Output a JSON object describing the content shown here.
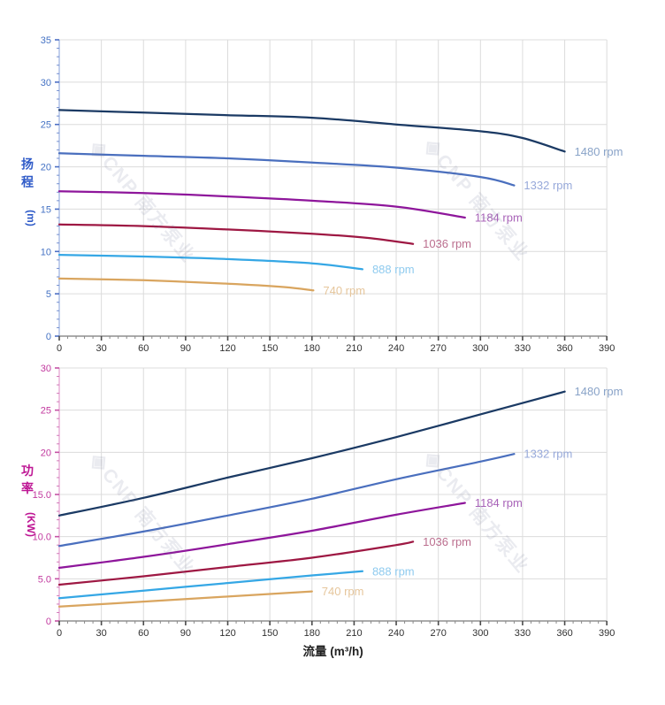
{
  "watermark": {
    "logo": "◈",
    "text": "CNP 南方泵业"
  },
  "x_axis": {
    "title": "流量 (m³/h)",
    "tick_labels": [
      "0",
      "30",
      "60",
      "90",
      "120",
      "150",
      "180",
      "210",
      "240",
      "270",
      "300",
      "330",
      "360",
      "390"
    ],
    "tick_step": 30,
    "minor_step": 6,
    "max": 390
  },
  "chart_data": [
    {
      "type": "line",
      "title": "",
      "ylabel_chars": "扬程",
      "ylabel_unit": "(m)",
      "xlabel": "",
      "xlim": [
        0,
        390
      ],
      "ylim": [
        0,
        35
      ],
      "grid": true,
      "y_tick_labels": [
        "0",
        "5",
        "10",
        "15",
        "20",
        "25",
        "30",
        "35"
      ],
      "y_tick_step": 5,
      "y_minor_step": 1,
      "axis_title_color": "#2F5BC8",
      "tick_label_color": "#4472C4",
      "tick_color": "#4C6FC4",
      "axis_line_color": "#A9BBE4",
      "series": [
        {
          "label": "1480 rpm",
          "color": "#1B3A64",
          "label_color": "#89A3C8",
          "points": [
            [
              0,
              26.7
            ],
            [
              60,
              26.4
            ],
            [
              120,
              26.1
            ],
            [
              180,
              25.8
            ],
            [
              240,
              25.0
            ],
            [
              300,
              24.2
            ],
            [
              330,
              23.4
            ],
            [
              360,
              21.8
            ]
          ]
        },
        {
          "label": "1332 rpm",
          "color": "#4A6FBE",
          "label_color": "#97A9DA",
          "points": [
            [
              0,
              21.6
            ],
            [
              60,
              21.3
            ],
            [
              120,
              21.0
            ],
            [
              180,
              20.5
            ],
            [
              240,
              19.9
            ],
            [
              300,
              18.8
            ],
            [
              324,
              17.8
            ]
          ]
        },
        {
          "label": "1184 rpm",
          "color": "#8E169B",
          "label_color": "#A863B8",
          "points": [
            [
              0,
              17.1
            ],
            [
              60,
              16.9
            ],
            [
              120,
              16.5
            ],
            [
              180,
              16.0
            ],
            [
              240,
              15.3
            ],
            [
              289,
              14.0
            ]
          ]
        },
        {
          "label": "1036 rpm",
          "color": "#9E1843",
          "label_color": "#BB6E8E",
          "points": [
            [
              0,
              13.2
            ],
            [
              60,
              13.0
            ],
            [
              120,
              12.6
            ],
            [
              180,
              12.1
            ],
            [
              220,
              11.6
            ],
            [
              252,
              10.9
            ]
          ]
        },
        {
          "label": "888 rpm",
          "color": "#35A7E5",
          "label_color": "#8FCBEF",
          "points": [
            [
              0,
              9.6
            ],
            [
              60,
              9.4
            ],
            [
              120,
              9.1
            ],
            [
              180,
              8.6
            ],
            [
              216,
              7.9
            ]
          ]
        },
        {
          "label": "740 rpm",
          "color": "#D9A55F",
          "label_color": "#E6C69C",
          "points": [
            [
              0,
              6.8
            ],
            [
              60,
              6.6
            ],
            [
              120,
              6.2
            ],
            [
              160,
              5.8
            ],
            [
              181,
              5.4
            ]
          ]
        }
      ]
    },
    {
      "type": "line",
      "title": "",
      "ylabel_chars": "功率",
      "ylabel_unit": "(KW)",
      "xlabel": "流量 (m³/h)",
      "xlim": [
        0,
        390
      ],
      "ylim": [
        0,
        30
      ],
      "grid": true,
      "y_tick_labels": [
        "0",
        "5.0",
        "10.0",
        "15.0",
        "20",
        "25",
        "30"
      ],
      "y_tick_step": 5,
      "y_minor_step": 1,
      "axis_title_color": "#BE1694",
      "tick_label_color": "#C2399F",
      "tick_color": "#C553A5",
      "axis_line_color": "#E6ABD6",
      "series": [
        {
          "label": "1480 rpm",
          "color": "#1B3A64",
          "label_color": "#89A3C8",
          "points": [
            [
              0,
              12.5
            ],
            [
              60,
              14.6
            ],
            [
              120,
              17.0
            ],
            [
              180,
              19.3
            ],
            [
              240,
              21.8
            ],
            [
              300,
              24.5
            ],
            [
              360,
              27.2
            ]
          ]
        },
        {
          "label": "1332 rpm",
          "color": "#4A6FBE",
          "label_color": "#97A9DA",
          "points": [
            [
              0,
              8.9
            ],
            [
              60,
              10.6
            ],
            [
              120,
              12.5
            ],
            [
              180,
              14.5
            ],
            [
              240,
              16.8
            ],
            [
              300,
              18.9
            ],
            [
              324,
              19.8
            ]
          ]
        },
        {
          "label": "1184 rpm",
          "color": "#8E169B",
          "label_color": "#A863B8",
          "points": [
            [
              0,
              6.3
            ],
            [
              60,
              7.6
            ],
            [
              120,
              9.1
            ],
            [
              180,
              10.7
            ],
            [
              240,
              12.6
            ],
            [
              289,
              14.0
            ]
          ]
        },
        {
          "label": "1036 rpm",
          "color": "#9E1843",
          "label_color": "#BB6E8E",
          "points": [
            [
              0,
              4.3
            ],
            [
              60,
              5.3
            ],
            [
              120,
              6.4
            ],
            [
              180,
              7.5
            ],
            [
              240,
              9.0
            ],
            [
              252,
              9.4
            ]
          ]
        },
        {
          "label": "888 rpm",
          "color": "#35A7E5",
          "label_color": "#8FCBEF",
          "points": [
            [
              0,
              2.7
            ],
            [
              60,
              3.6
            ],
            [
              120,
              4.5
            ],
            [
              180,
              5.4
            ],
            [
              216,
              5.9
            ]
          ]
        },
        {
          "label": "740 rpm",
          "color": "#D9A55F",
          "label_color": "#E6C69C",
          "points": [
            [
              0,
              1.7
            ],
            [
              60,
              2.3
            ],
            [
              120,
              2.9
            ],
            [
              180,
              3.5
            ]
          ]
        }
      ]
    }
  ]
}
